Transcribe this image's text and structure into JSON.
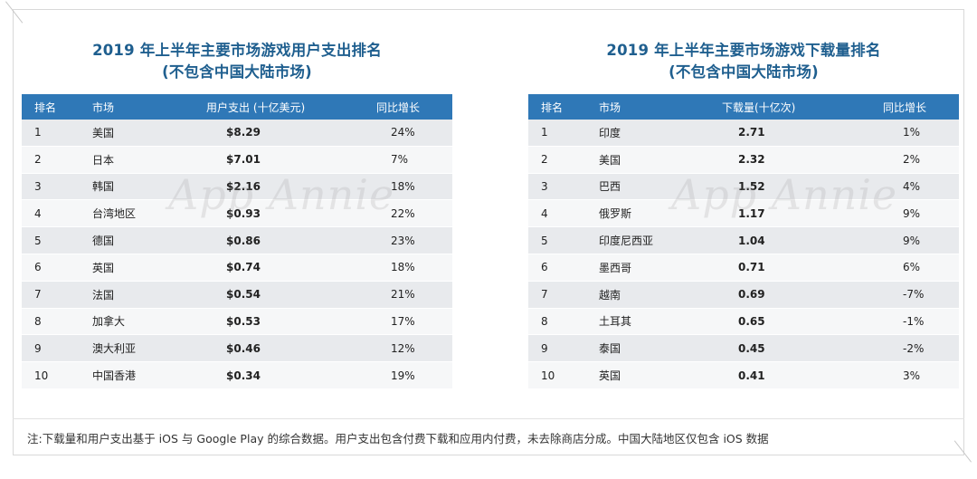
{
  "left_table": {
    "title_line1": "2019 年上半年主要市场游戏用户支出排名",
    "title_line2": "(不包含中国大陆市场)",
    "headers": [
      "排名",
      "市场",
      "用户支出 (十亿美元)",
      "同比增长"
    ],
    "rows": [
      [
        "1",
        "美国",
        "$8.29",
        "24%"
      ],
      [
        "2",
        "日本",
        "$7.01",
        "7%"
      ],
      [
        "3",
        "韩国",
        "$2.16",
        "18%"
      ],
      [
        "4",
        "台湾地区",
        "$0.93",
        "22%"
      ],
      [
        "5",
        "德国",
        "$0.86",
        "23%"
      ],
      [
        "6",
        "英国",
        "$0.74",
        "18%"
      ],
      [
        "7",
        "法国",
        "$0.54",
        "21%"
      ],
      [
        "8",
        "加拿大",
        "$0.53",
        "17%"
      ],
      [
        "9",
        "澳大利亚",
        "$0.46",
        "12%"
      ],
      [
        "10",
        "中国香港",
        "$0.34",
        "19%"
      ]
    ]
  },
  "right_table": {
    "title_line1": "2019 年上半年主要市场游戏下载量排名",
    "title_line2": "(不包含中国大陆市场)",
    "headers": [
      "排名",
      "市场",
      "下载量(十亿次)",
      "同比增长"
    ],
    "rows": [
      [
        "1",
        "印度",
        "2.71",
        "1%"
      ],
      [
        "2",
        "美国",
        "2.32",
        "2%"
      ],
      [
        "3",
        "巴西",
        "1.52",
        "4%"
      ],
      [
        "4",
        "俄罗斯",
        "1.17",
        "9%"
      ],
      [
        "5",
        "印度尼西亚",
        "1.04",
        "9%"
      ],
      [
        "6",
        "墨西哥",
        "0.71",
        "6%"
      ],
      [
        "7",
        "越南",
        "0.69",
        "-7%"
      ],
      [
        "8",
        "土耳其",
        "0.65",
        "-1%"
      ],
      [
        "9",
        "泰国",
        "0.45",
        "-2%"
      ],
      [
        "10",
        "英国",
        "0.41",
        "3%"
      ]
    ]
  },
  "watermark": "App Annie",
  "footnote": "注:下载量和用户支出基于 iOS 与 Google Play 的综合数据。用户支出包含付费下载和应用内付费，未去除商店分成。中国大陆地区仅包含 iOS 数据",
  "colors": {
    "title": "#1f5f8f",
    "header_bg": "#2f78b7",
    "row_odd": "#e8eaed",
    "row_even": "#f6f7f8"
  }
}
